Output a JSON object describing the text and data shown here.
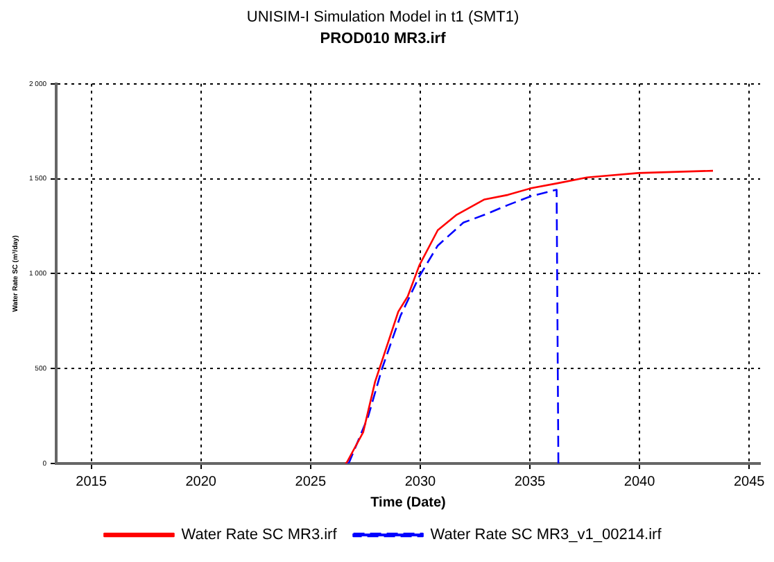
{
  "chart_data": {
    "type": "line",
    "title": "UNISIM-I Simulation Model in t1 (SMT1)",
    "subtitle": "PROD010 MR3.irf",
    "xlabel": "Time (Date)",
    "ylabel": "Water Rate SC (m³/day)",
    "xlim": [
      2013.4,
      2045.5
    ],
    "xticks": [
      2015,
      2020,
      2025,
      2030,
      2035,
      2040,
      2045
    ],
    "ylim": [
      0,
      2000
    ],
    "yticks": [
      {
        "value": 0,
        "label": "0"
      },
      {
        "value": 500,
        "label": "500"
      },
      {
        "value": 1000,
        "label": "1 000"
      },
      {
        "value": 1500,
        "label": "1 500"
      },
      {
        "value": 2000,
        "label": "2 000"
      }
    ],
    "grid": true,
    "legend": "bottom",
    "marker": "none",
    "series": [
      {
        "name": "Water Rate SC MR3.irf",
        "color": "#ff0000",
        "line_style": "solid",
        "x": [
          2026.6,
          2026.67,
          2027.4,
          2027.94,
          2029.0,
          2029.43,
          2029.96,
          2030.8,
          2031.66,
          2032.93,
          2034.0,
          2035.05,
          2036.3,
          2037.6,
          2039.94,
          2043.35
        ],
        "values": [
          0,
          9,
          165,
          430,
          800,
          880,
          1044,
          1229,
          1310,
          1391,
          1415,
          1450,
          1477,
          1507,
          1530,
          1542
        ]
      },
      {
        "name": "Water Rate SC MR3_v1_00214.irf",
        "color": "#0000ff",
        "line_style": "dashed",
        "x": [
          2026.7,
          2026.77,
          2027.62,
          2028.26,
          2029.1,
          2029.96,
          2030.8,
          2031.97,
          2032.93,
          2033.99,
          2035.05,
          2036.22,
          2036.3
        ],
        "values": [
          0,
          9,
          245,
          500,
          778,
          986,
          1148,
          1269,
          1310,
          1361,
          1408,
          1442,
          0
        ]
      }
    ]
  }
}
